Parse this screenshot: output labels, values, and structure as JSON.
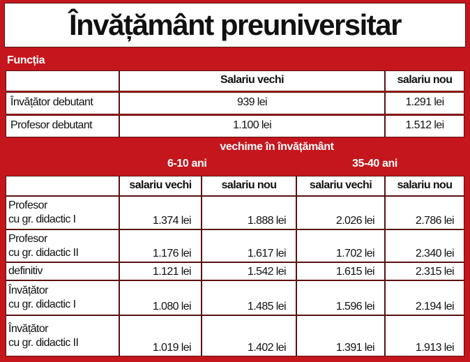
{
  "header": {
    "title": "Învățământ preuniversitar"
  },
  "section1": {
    "label": "Funcția",
    "columns": [
      "Salariu vechi",
      "salariu nou"
    ],
    "rows": [
      [
        "Învățător debutant",
        "939 lei",
        "1.291 lei"
      ],
      [
        "Profesor debutant",
        "1.100 lei",
        "1.512 lei"
      ]
    ]
  },
  "section2": {
    "label": "vechime în învățământ",
    "groups": [
      "6-10 ani",
      "35-40 ani"
    ],
    "columns": [
      "salariu vechi",
      "salariu nou",
      "salariu vechi",
      "salariu nou"
    ],
    "rows": [
      {
        "label": [
          "Profesor",
          "cu gr. didactic I"
        ],
        "values": [
          "1.374 lei",
          "1.888 lei",
          "2.026 lei",
          "2.786 lei"
        ]
      },
      {
        "label": [
          "Profesor",
          "cu gr. didactic II"
        ],
        "values": [
          "1.176 lei",
          "1.617 lei",
          "1.702 lei",
          "2.340 lei"
        ]
      },
      {
        "label": [
          "definitiv"
        ],
        "values": [
          "1.121 lei",
          "1.542 lei",
          "1.615 lei",
          "2.315 lei"
        ]
      },
      {
        "label": [
          "Învățător",
          "cu gr. didactic I"
        ],
        "values": [
          "1.080 lei",
          "1.485 lei",
          "1.596 lei",
          "2.194 lei"
        ]
      },
      {
        "label": [
          "Învățător",
          "cu gr. didactic II"
        ],
        "values": [
          "1.019 lei",
          "1.402 lei",
          "1.391 lei",
          "1.913 lei"
        ]
      }
    ]
  }
}
